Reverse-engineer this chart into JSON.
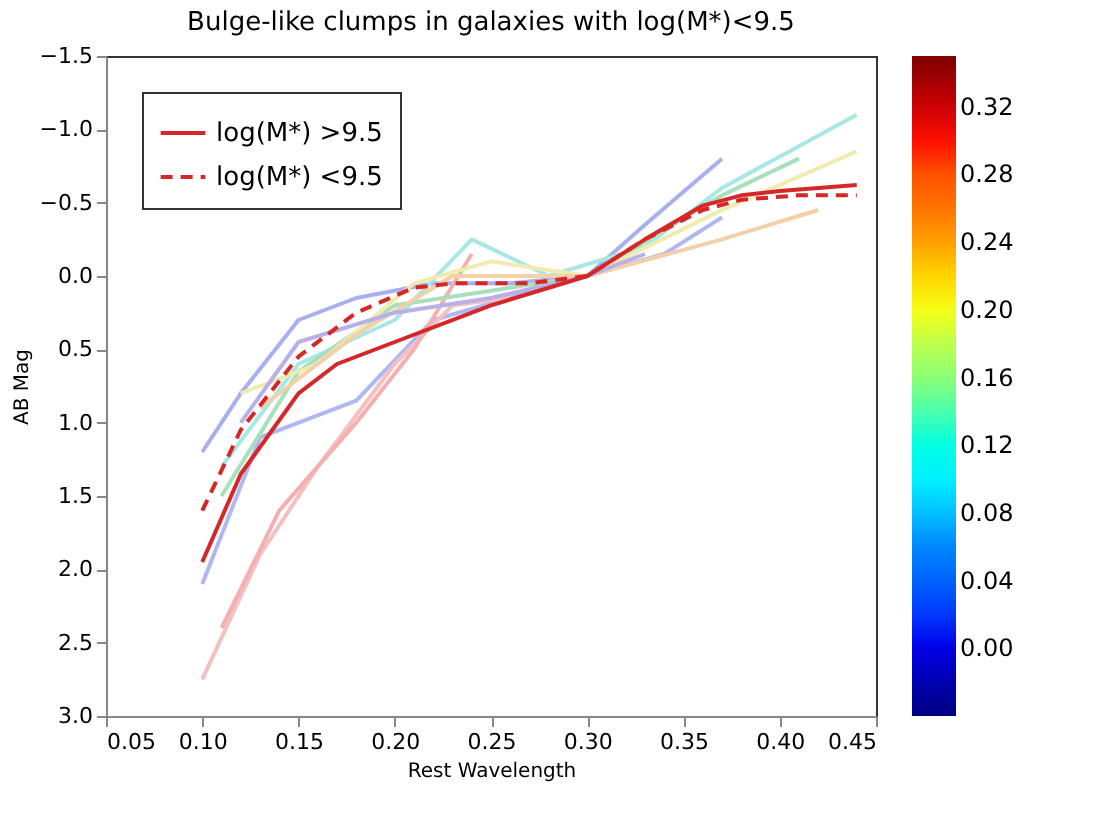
{
  "chart_data": {
    "type": "line",
    "title": "Bulge-like clumps in galaxies with log(M*)<9.5",
    "xlabel": "Rest Wavelength",
    "ylabel": "AB Mag",
    "xlim": [
      0.05,
      0.45
    ],
    "xticks": [
      0.05,
      {
        "value": 0.1,
        "label": "0.10"
      },
      0.15,
      {
        "value": 0.2,
        "label": "0.20"
      },
      0.25,
      {
        "value": 0.3,
        "label": "0.30"
      },
      0.35,
      {
        "value": 0.4,
        "label": "0.40"
      },
      0.45
    ],
    "ylim": [
      3.0,
      -1.5
    ],
    "yticks": [
      {
        "value": 3,
        "label": "3.0"
      },
      2.5,
      {
        "value": 2,
        "label": "2.0"
      },
      1.5,
      {
        "value": 1,
        "label": "1.0"
      },
      0.5,
      {
        "value": 0,
        "label": "0.0"
      },
      -0.5,
      {
        "value": -1,
        "label": "−1.0"
      },
      -1.5
    ],
    "clim": [
      -0.04,
      0.35
    ],
    "cticks": [
      {
        "value": 0.0,
        "label": "0.00"
      },
      {
        "value": 0.04,
        "label": "0.04"
      },
      {
        "value": 0.08,
        "label": "0.08"
      },
      {
        "value": 0.12,
        "label": "0.12"
      },
      {
        "value": 0.16,
        "label": "0.16"
      },
      {
        "value": 0.2,
        "label": "0.20"
      },
      {
        "value": 0.24,
        "label": "0.24"
      },
      {
        "value": 0.28,
        "label": "0.28"
      },
      {
        "value": 0.32,
        "label": "0.32"
      }
    ],
    "grid": false,
    "legend": "top left",
    "series": [
      {
        "color": "#a8b0f0",
        "x": [
          0.1,
          0.12,
          0.15,
          0.18,
          0.22,
          0.26,
          0.3,
          0.33,
          0.37
        ],
        "values": [
          1.2,
          0.8,
          0.3,
          0.15,
          0.05,
          0.05,
          0.0,
          -0.35,
          -0.8
        ]
      },
      {
        "color": "#b0b8f4",
        "x": [
          0.1,
          0.13,
          0.18,
          0.22,
          0.26,
          0.3,
          0.34,
          0.37
        ],
        "values": [
          2.1,
          1.1,
          0.85,
          0.3,
          0.15,
          0.0,
          -0.15,
          -0.4
        ]
      },
      {
        "color": "#f4c0c0",
        "x": [
          0.1,
          0.13,
          0.16,
          0.2,
          0.23,
          0.26
        ],
        "values": [
          2.75,
          1.9,
          1.3,
          0.6,
          0.2,
          0.15
        ]
      },
      {
        "color": "#f4b0b0",
        "x": [
          0.11,
          0.14,
          0.18,
          0.21,
          0.24
        ],
        "values": [
          2.4,
          1.6,
          1.0,
          0.5,
          -0.15
        ]
      },
      {
        "color": "#a8e8e4",
        "x": [
          0.11,
          0.15,
          0.2,
          0.24,
          0.28,
          0.33,
          0.37,
          0.44
        ],
        "values": [
          1.3,
          0.6,
          0.3,
          -0.25,
          0.0,
          -0.2,
          -0.6,
          -1.1
        ]
      },
      {
        "color": "#a8e0bc",
        "x": [
          0.11,
          0.15,
          0.2,
          0.25,
          0.3,
          0.37,
          0.41
        ],
        "values": [
          1.5,
          0.65,
          0.2,
          0.1,
          0.0,
          -0.55,
          -0.8
        ]
      },
      {
        "color": "#f0ecb0",
        "x": [
          0.12,
          0.16,
          0.21,
          0.25,
          0.3,
          0.37,
          0.44
        ],
        "values": [
          0.8,
          0.6,
          0.05,
          -0.1,
          0.0,
          -0.45,
          -0.85
        ]
      },
      {
        "color": "#f4d0a8",
        "x": [
          0.13,
          0.18,
          0.23,
          0.3,
          0.37,
          0.42
        ],
        "values": [
          0.9,
          0.4,
          0.0,
          0.0,
          -0.25,
          -0.45
        ]
      },
      {
        "color": "#b8b0e8",
        "x": [
          0.12,
          0.15,
          0.2,
          0.25,
          0.3,
          0.33
        ],
        "values": [
          1.0,
          0.45,
          0.25,
          0.15,
          0.0,
          -0.15
        ]
      },
      {
        "name": "log(M*) >9.5",
        "color": "#d62728",
        "line_style": "solid",
        "x": [
          0.1,
          0.12,
          0.15,
          0.17,
          0.2,
          0.25,
          0.28,
          0.3,
          0.33,
          0.36,
          0.38,
          0.4,
          0.44
        ],
        "values": [
          1.95,
          1.35,
          0.8,
          0.6,
          0.45,
          0.2,
          0.08,
          0.0,
          -0.25,
          -0.48,
          -0.55,
          -0.58,
          -0.62
        ]
      },
      {
        "name": "log(M*) <9.5",
        "color": "#d62728",
        "line_style": "dashed",
        "x": [
          0.1,
          0.12,
          0.15,
          0.18,
          0.21,
          0.23,
          0.27,
          0.3,
          0.33,
          0.36,
          0.38,
          0.41,
          0.44
        ],
        "values": [
          1.6,
          1.05,
          0.55,
          0.25,
          0.08,
          0.05,
          0.05,
          0.0,
          -0.25,
          -0.45,
          -0.52,
          -0.55,
          -0.55
        ]
      }
    ]
  }
}
